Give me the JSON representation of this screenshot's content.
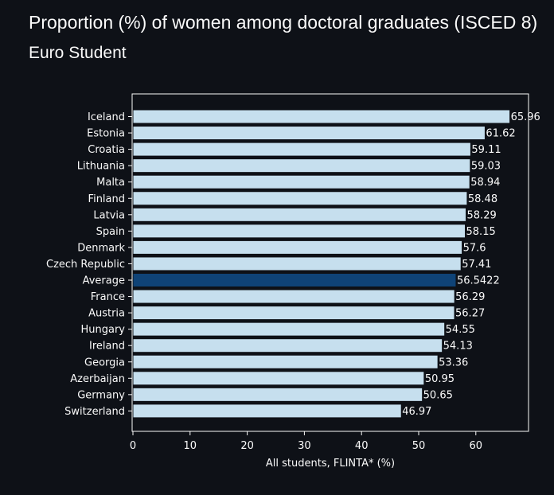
{
  "page": {
    "title": "Proportion (%) of women among doctoral graduates (ISCED 8)",
    "subtitle": "Euro Student"
  },
  "chart_data": {
    "type": "bar",
    "orientation": "horizontal",
    "categories": [
      "Iceland",
      "Estonia",
      "Croatia",
      "Lithuania",
      "Malta",
      "Finland",
      "Latvia",
      "Spain",
      "Denmark",
      "Czech Republic",
      "Average",
      "France",
      "Austria",
      "Hungary",
      "Ireland",
      "Georgia",
      "Azerbaijan",
      "Germany",
      "Switzerland"
    ],
    "values": [
      65.96,
      61.62,
      59.11,
      59.03,
      58.94,
      58.48,
      58.29,
      58.15,
      57.6,
      57.41,
      56.5422,
      56.29,
      56.27,
      54.55,
      54.13,
      53.36,
      50.95,
      50.65,
      46.97
    ],
    "value_labels": [
      "65.96",
      "61.62",
      "59.11",
      "59.03",
      "58.94",
      "58.48",
      "58.29",
      "58.15",
      "57.6",
      "57.41",
      "56.5422",
      "56.29",
      "56.27",
      "54.55",
      "54.13",
      "53.36",
      "50.95",
      "50.65",
      "46.97"
    ],
    "highlight_category": "Average",
    "xlabel": "All students, FLINTA* (%)",
    "ylabel": "",
    "xlim": [
      0,
      69.3
    ],
    "xticks": [
      0,
      10,
      20,
      30,
      40,
      50,
      60
    ],
    "grid": false,
    "colors": {
      "bar": "#c6dfee",
      "highlight": "#0f4377",
      "bar_edge": "#0e1117",
      "axis": "#fafafa",
      "background": "#0e1117"
    }
  }
}
